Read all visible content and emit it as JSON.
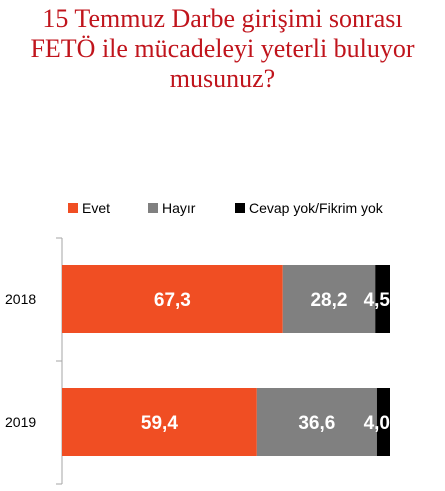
{
  "chart_data": {
    "type": "bar",
    "orientation": "horizontal",
    "stacked": true,
    "title_lines": [
      "15 Temmuz Darbe girişimi sonrası",
      "FETÖ ile mücadeleyi yeterli buluyor",
      "musunuz?"
    ],
    "categories": [
      "2018",
      "2019"
    ],
    "series": [
      {
        "name": "Evet",
        "color": "#f04e23",
        "values": [
          67.3,
          59.4
        ],
        "labels": [
          "67,3",
          "59,4"
        ]
      },
      {
        "name": "Hayır",
        "color": "#808080",
        "values": [
          28.2,
          36.6
        ],
        "labels": [
          "28,2",
          "36,6"
        ]
      },
      {
        "name": "Cevap yok/Fikrim yok",
        "color": "#000000",
        "values": [
          4.5,
          4.0
        ],
        "labels": [
          "4,5",
          "4,0"
        ]
      }
    ],
    "xlim": [
      0,
      100
    ],
    "legend_position": "top",
    "grid": false
  }
}
